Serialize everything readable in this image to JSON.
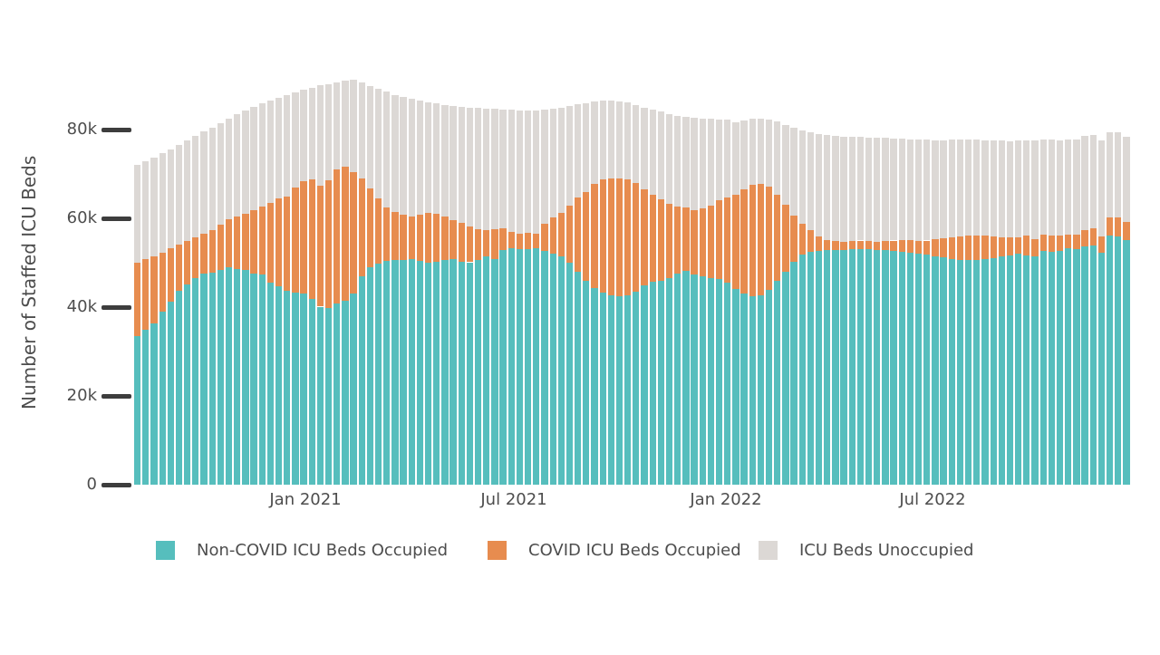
{
  "chart_data": {
    "type": "bar",
    "stacked": true,
    "title": "",
    "ylabel": "Number of Staffed ICU Beds",
    "units": "thousands of beds",
    "grid": false,
    "legend_position": "bottom",
    "ylim": [
      0,
      93000
    ],
    "y_ticks": [
      {
        "label": "0",
        "value": 0
      },
      {
        "label": "20k",
        "value": 20000
      },
      {
        "label": "40k",
        "value": 40000
      },
      {
        "label": "60k",
        "value": 60000
      },
      {
        "label": "80k",
        "value": 80000
      }
    ],
    "x_tick_labels": [
      "Jan 2021",
      "Jul 2021",
      "Jan 2022",
      "Jul 2022"
    ],
    "x": [
      "2020-08-07",
      "2020-08-14",
      "2020-08-21",
      "2020-08-28",
      "2020-09-04",
      "2020-09-11",
      "2020-09-18",
      "2020-09-25",
      "2020-10-02",
      "2020-10-09",
      "2020-10-16",
      "2020-10-23",
      "2020-10-30",
      "2020-11-06",
      "2020-11-13",
      "2020-11-20",
      "2020-11-27",
      "2020-12-04",
      "2020-12-11",
      "2020-12-18",
      "2020-12-25",
      "2021-01-01",
      "2021-01-08",
      "2021-01-15",
      "2021-01-22",
      "2021-01-29",
      "2021-02-05",
      "2021-02-12",
      "2021-02-19",
      "2021-02-26",
      "2021-03-05",
      "2021-03-12",
      "2021-03-19",
      "2021-03-26",
      "2021-04-02",
      "2021-04-09",
      "2021-04-16",
      "2021-04-23",
      "2021-04-30",
      "2021-05-07",
      "2021-05-14",
      "2021-05-21",
      "2021-05-28",
      "2021-06-04",
      "2021-06-11",
      "2021-06-18",
      "2021-06-25",
      "2021-07-02",
      "2021-07-09",
      "2021-07-16",
      "2021-07-23",
      "2021-07-30",
      "2021-08-06",
      "2021-08-13",
      "2021-08-20",
      "2021-08-27",
      "2021-09-03",
      "2021-09-10",
      "2021-09-17",
      "2021-09-24",
      "2021-10-01",
      "2021-10-08",
      "2021-10-15",
      "2021-10-22",
      "2021-10-29",
      "2021-11-05",
      "2021-11-12",
      "2021-11-19",
      "2021-11-26",
      "2021-12-03",
      "2021-12-10",
      "2021-12-17",
      "2021-12-24",
      "2021-12-31",
      "2022-01-07",
      "2022-01-14",
      "2022-01-21",
      "2022-01-28",
      "2022-02-04",
      "2022-02-11",
      "2022-02-18",
      "2022-02-25",
      "2022-03-04",
      "2022-03-11",
      "2022-03-18",
      "2022-03-25",
      "2022-04-01",
      "2022-04-08",
      "2022-04-15",
      "2022-04-22",
      "2022-04-29",
      "2022-05-06",
      "2022-05-13",
      "2022-05-20",
      "2022-05-27",
      "2022-06-03",
      "2022-06-10",
      "2022-06-17",
      "2022-06-24",
      "2022-07-01",
      "2022-07-08",
      "2022-07-15",
      "2022-07-22",
      "2022-07-29",
      "2022-08-05",
      "2022-08-12",
      "2022-08-19",
      "2022-08-26",
      "2022-09-02",
      "2022-09-09",
      "2022-09-16",
      "2022-09-23",
      "2022-09-30",
      "2022-10-07",
      "2022-10-14",
      "2022-10-21",
      "2022-10-28",
      "2022-11-04",
      "2022-11-11",
      "2022-11-18"
    ],
    "series": [
      {
        "name": "Non-COVID ICU Beds Occupied",
        "color": "#56BEBD",
        "values_thousands": [
          33.4,
          34.8,
          36.3,
          39.0,
          41.2,
          43.7,
          45.2,
          46.5,
          47.6,
          47.8,
          48.3,
          49.0,
          48.6,
          48.3,
          47.6,
          47.3,
          45.6,
          44.7,
          43.6,
          43.2,
          43.1,
          41.8,
          40.1,
          39.8,
          40.8,
          41.5,
          43.0,
          46.9,
          49.0,
          49.8,
          50.5,
          50.7,
          50.6,
          50.8,
          50.4,
          50.0,
          50.2,
          50.6,
          50.8,
          50.3,
          50.1,
          50.6,
          51.5,
          50.8,
          52.9,
          53.3,
          53.1,
          53.0,
          53.3,
          52.6,
          52.0,
          51.4,
          50.0,
          48.0,
          45.9,
          44.2,
          43.2,
          42.7,
          42.5,
          42.7,
          43.5,
          44.9,
          45.8,
          46.0,
          46.6,
          47.6,
          48.1,
          47.3,
          47.0,
          46.6,
          46.3,
          45.5,
          44.0,
          43.0,
          42.4,
          42.6,
          43.8,
          45.9,
          48.0,
          50.3,
          51.8,
          52.4,
          52.7,
          52.8,
          52.9,
          52.9,
          53.0,
          53.1,
          53.0,
          52.9,
          52.8,
          52.6,
          52.4,
          52.2,
          52.0,
          51.8,
          51.5,
          51.2,
          50.9,
          50.7,
          50.6,
          50.7,
          50.8,
          51.0,
          51.4,
          51.7,
          52.0,
          51.7,
          51.4,
          52.7,
          52.5,
          52.7,
          53.3,
          53.1,
          53.7,
          53.9,
          52.2,
          56.1,
          56.0,
          55.1
        ]
      },
      {
        "name": "COVID ICU Beds Occupied",
        "color": "#E78C4F",
        "values_thousands": [
          16.6,
          16.0,
          15.2,
          13.3,
          12.0,
          10.4,
          9.7,
          9.2,
          8.9,
          9.5,
          10.3,
          10.7,
          11.9,
          12.7,
          14.3,
          15.3,
          17.9,
          19.7,
          21.2,
          23.8,
          25.3,
          26.9,
          27.2,
          28.7,
          30.3,
          30.1,
          27.4,
          22.1,
          17.8,
          14.7,
          12.0,
          10.7,
          10.3,
          9.6,
          10.5,
          11.2,
          10.8,
          9.9,
          8.8,
          8.6,
          8.0,
          7.0,
          5.9,
          6.7,
          4.8,
          3.6,
          3.4,
          3.7,
          3.3,
          6.2,
          8.2,
          9.8,
          12.9,
          16.6,
          20.1,
          23.5,
          25.5,
          26.3,
          26.5,
          26.0,
          24.5,
          21.6,
          19.5,
          18.3,
          16.7,
          15.0,
          14.4,
          14.6,
          15.3,
          16.3,
          17.7,
          19.1,
          21.3,
          23.5,
          25.1,
          25.1,
          23.4,
          19.4,
          15.0,
          10.4,
          6.9,
          4.9,
          3.2,
          2.4,
          2.0,
          1.7,
          1.8,
          1.9,
          1.8,
          1.7,
          2.0,
          2.4,
          2.8,
          2.9,
          2.9,
          3.2,
          3.8,
          4.3,
          4.8,
          5.2,
          5.5,
          5.5,
          5.3,
          4.9,
          4.4,
          4.0,
          3.8,
          4.4,
          4.0,
          3.6,
          3.6,
          3.4,
          3.1,
          3.2,
          3.7,
          3.8,
          3.7,
          4.2,
          4.2,
          4.1
        ]
      },
      {
        "name": "ICU Beds Unoccupied",
        "color": "#DCD8D5",
        "values_thousands": [
          22.0,
          22.1,
          22.2,
          22.3,
          22.3,
          22.4,
          22.6,
          22.8,
          23.0,
          23.1,
          22.8,
          22.7,
          22.9,
          23.3,
          23.2,
          23.3,
          23.1,
          22.8,
          23.0,
          21.4,
          20.5,
          20.7,
          22.6,
          21.8,
          19.6,
          19.5,
          20.8,
          21.6,
          23.0,
          24.7,
          26.0,
          26.4,
          26.4,
          26.6,
          25.7,
          25.0,
          24.9,
          25.1,
          25.7,
          26.2,
          26.8,
          27.2,
          27.3,
          27.1,
          26.8,
          27.5,
          27.8,
          27.6,
          27.6,
          25.6,
          24.4,
          23.7,
          22.4,
          21.1,
          20.0,
          18.6,
          17.8,
          17.6,
          17.4,
          17.4,
          17.6,
          18.5,
          19.2,
          19.7,
          20.2,
          20.5,
          20.4,
          20.8,
          20.2,
          19.5,
          18.3,
          17.6,
          16.3,
          15.5,
          14.9,
          14.8,
          15.1,
          16.5,
          18.1,
          19.7,
          21.1,
          22.0,
          23.0,
          23.5,
          23.6,
          23.8,
          23.6,
          23.3,
          23.4,
          23.6,
          23.3,
          23.0,
          22.7,
          22.7,
          22.8,
          22.7,
          22.3,
          22.1,
          22.0,
          21.9,
          21.7,
          21.5,
          21.5,
          21.6,
          21.7,
          21.7,
          21.7,
          21.5,
          22.2,
          21.4,
          21.7,
          21.4,
          21.3,
          21.5,
          21.2,
          21.0,
          21.7,
          19.1,
          19.2,
          19.2
        ]
      }
    ]
  }
}
